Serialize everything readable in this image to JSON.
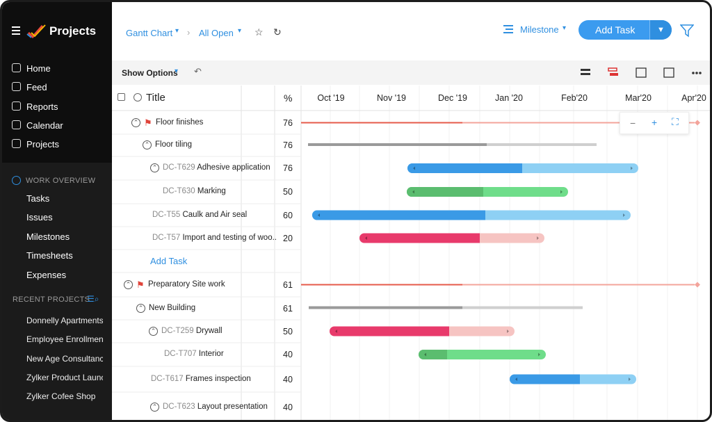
{
  "sidebar": {
    "logo": "Projects",
    "nav": [
      "Home",
      "Feed",
      "Reports",
      "Calendar",
      "Projects"
    ],
    "work_overview": {
      "title": "WORK OVERVIEW",
      "items": [
        "Tasks",
        "Issues",
        "Milestones",
        "Timesheets",
        "Expenses"
      ]
    },
    "recent_projects": {
      "title": "RECENT PROJECTS",
      "items": [
        "Donnelly Apartments",
        "Employee Enrollment",
        "New Age Consultancy",
        "Zylker Product Launch",
        "Zylker Cofee Shop"
      ]
    }
  },
  "header": {
    "view": "Gantt Chart",
    "filter": "All Open",
    "group": "Milestone",
    "add_task": "Add Task"
  },
  "toolbar": {
    "show_options": "Show Options"
  },
  "table": {
    "columns": [
      "Title",
      "%"
    ],
    "months": [
      "Oct '19",
      "Nov '19",
      "Dec '19",
      "Jan '20",
      "Feb'20",
      "Mar'20",
      "Apr'20"
    ],
    "rows": [
      {
        "name": "Floor finishes",
        "percent": 76
      },
      {
        "name": "Floor tiling",
        "percent": 76
      },
      {
        "id": "DC-T629",
        "name": "Adhesive application",
        "percent": 76
      },
      {
        "id": "DC-T630",
        "name": "Marking",
        "percent": 50
      },
      {
        "id": "DC-T55",
        "name": "Caulk and Air seal",
        "percent": 60
      },
      {
        "id": "DC-T57",
        "name": "Import and testing of woo..",
        "percent": 20
      },
      {
        "add": "Add Task"
      },
      {
        "name": "Preparatory Site work",
        "percent": 61
      },
      {
        "name": "New Building",
        "percent": 61
      },
      {
        "id": "DC-T259",
        "name": "Drywall",
        "percent": 50
      },
      {
        "id": "DC-T707",
        "name": "Interior",
        "percent": 40
      },
      {
        "id": "DC-T617",
        "name": "Frames inspection",
        "percent": 40
      },
      {
        "id": "DC-T623",
        "name": "Layout presentation",
        "percent": 40
      }
    ]
  }
}
